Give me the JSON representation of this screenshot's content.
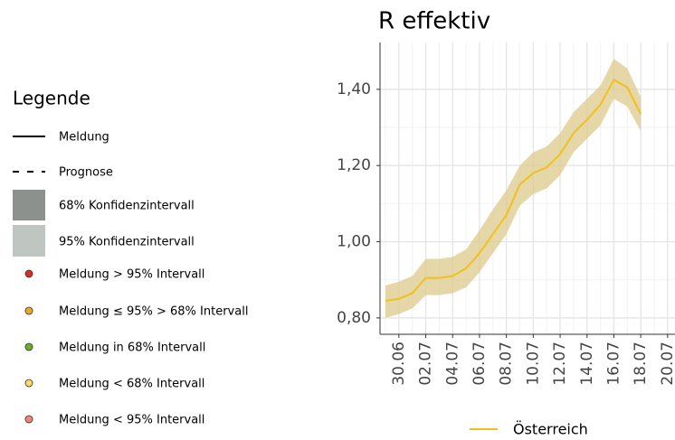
{
  "legend_panel": {
    "title": "Legende",
    "items": [
      "Meldung",
      "Prognose",
      "68% Konfidenzintervall",
      "95% Konfidenzintervall",
      "Meldung > 95% Intervall",
      "Meldung ≤ 95% > 68% Intervall",
      "Meldung in 68% Intervall",
      "Meldung < 68% Intervall",
      "Meldung < 95% Intervall"
    ]
  },
  "chart_data": {
    "type": "line",
    "title": "R effektiv",
    "categories": [
      null,
      "30.06",
      null,
      "02.07",
      null,
      "04.07",
      null,
      "06.07",
      null,
      "08.07",
      null,
      "10.07",
      null,
      "12.07",
      null,
      "14.07",
      null,
      "16.07",
      null,
      "18.07",
      null,
      "20.07"
    ],
    "series": [
      {
        "name": "Österreich",
        "color": "#f0c020",
        "band_color": "#dcc98a",
        "values": [
          0.845,
          0.85,
          0.865,
          0.905,
          0.905,
          0.91,
          0.93,
          0.97,
          1.02,
          1.07,
          1.15,
          1.18,
          1.195,
          1.23,
          1.285,
          1.32,
          1.36,
          1.425,
          1.405,
          1.335,
          null,
          null
        ],
        "upper": [
          0.885,
          0.895,
          0.91,
          0.955,
          0.955,
          0.96,
          0.98,
          1.03,
          1.085,
          1.135,
          1.2,
          1.235,
          1.25,
          1.285,
          1.34,
          1.375,
          1.41,
          1.48,
          1.455,
          1.38,
          null,
          null
        ],
        "lower": [
          0.8,
          0.81,
          0.825,
          0.86,
          0.86,
          0.865,
          0.88,
          0.92,
          0.97,
          1.02,
          1.095,
          1.125,
          1.14,
          1.175,
          1.235,
          1.27,
          1.305,
          1.375,
          1.355,
          1.29,
          null,
          null
        ]
      }
    ],
    "ylim": [
      0.757,
      1.523
    ],
    "yticks": [
      {
        "value": 0.8,
        "label": "0,80"
      },
      {
        "value": 1.0,
        "label": "1,00"
      },
      {
        "value": 1.2,
        "label": "1,20"
      },
      {
        "value": 1.4,
        "label": "1,40"
      }
    ],
    "grid": true
  }
}
